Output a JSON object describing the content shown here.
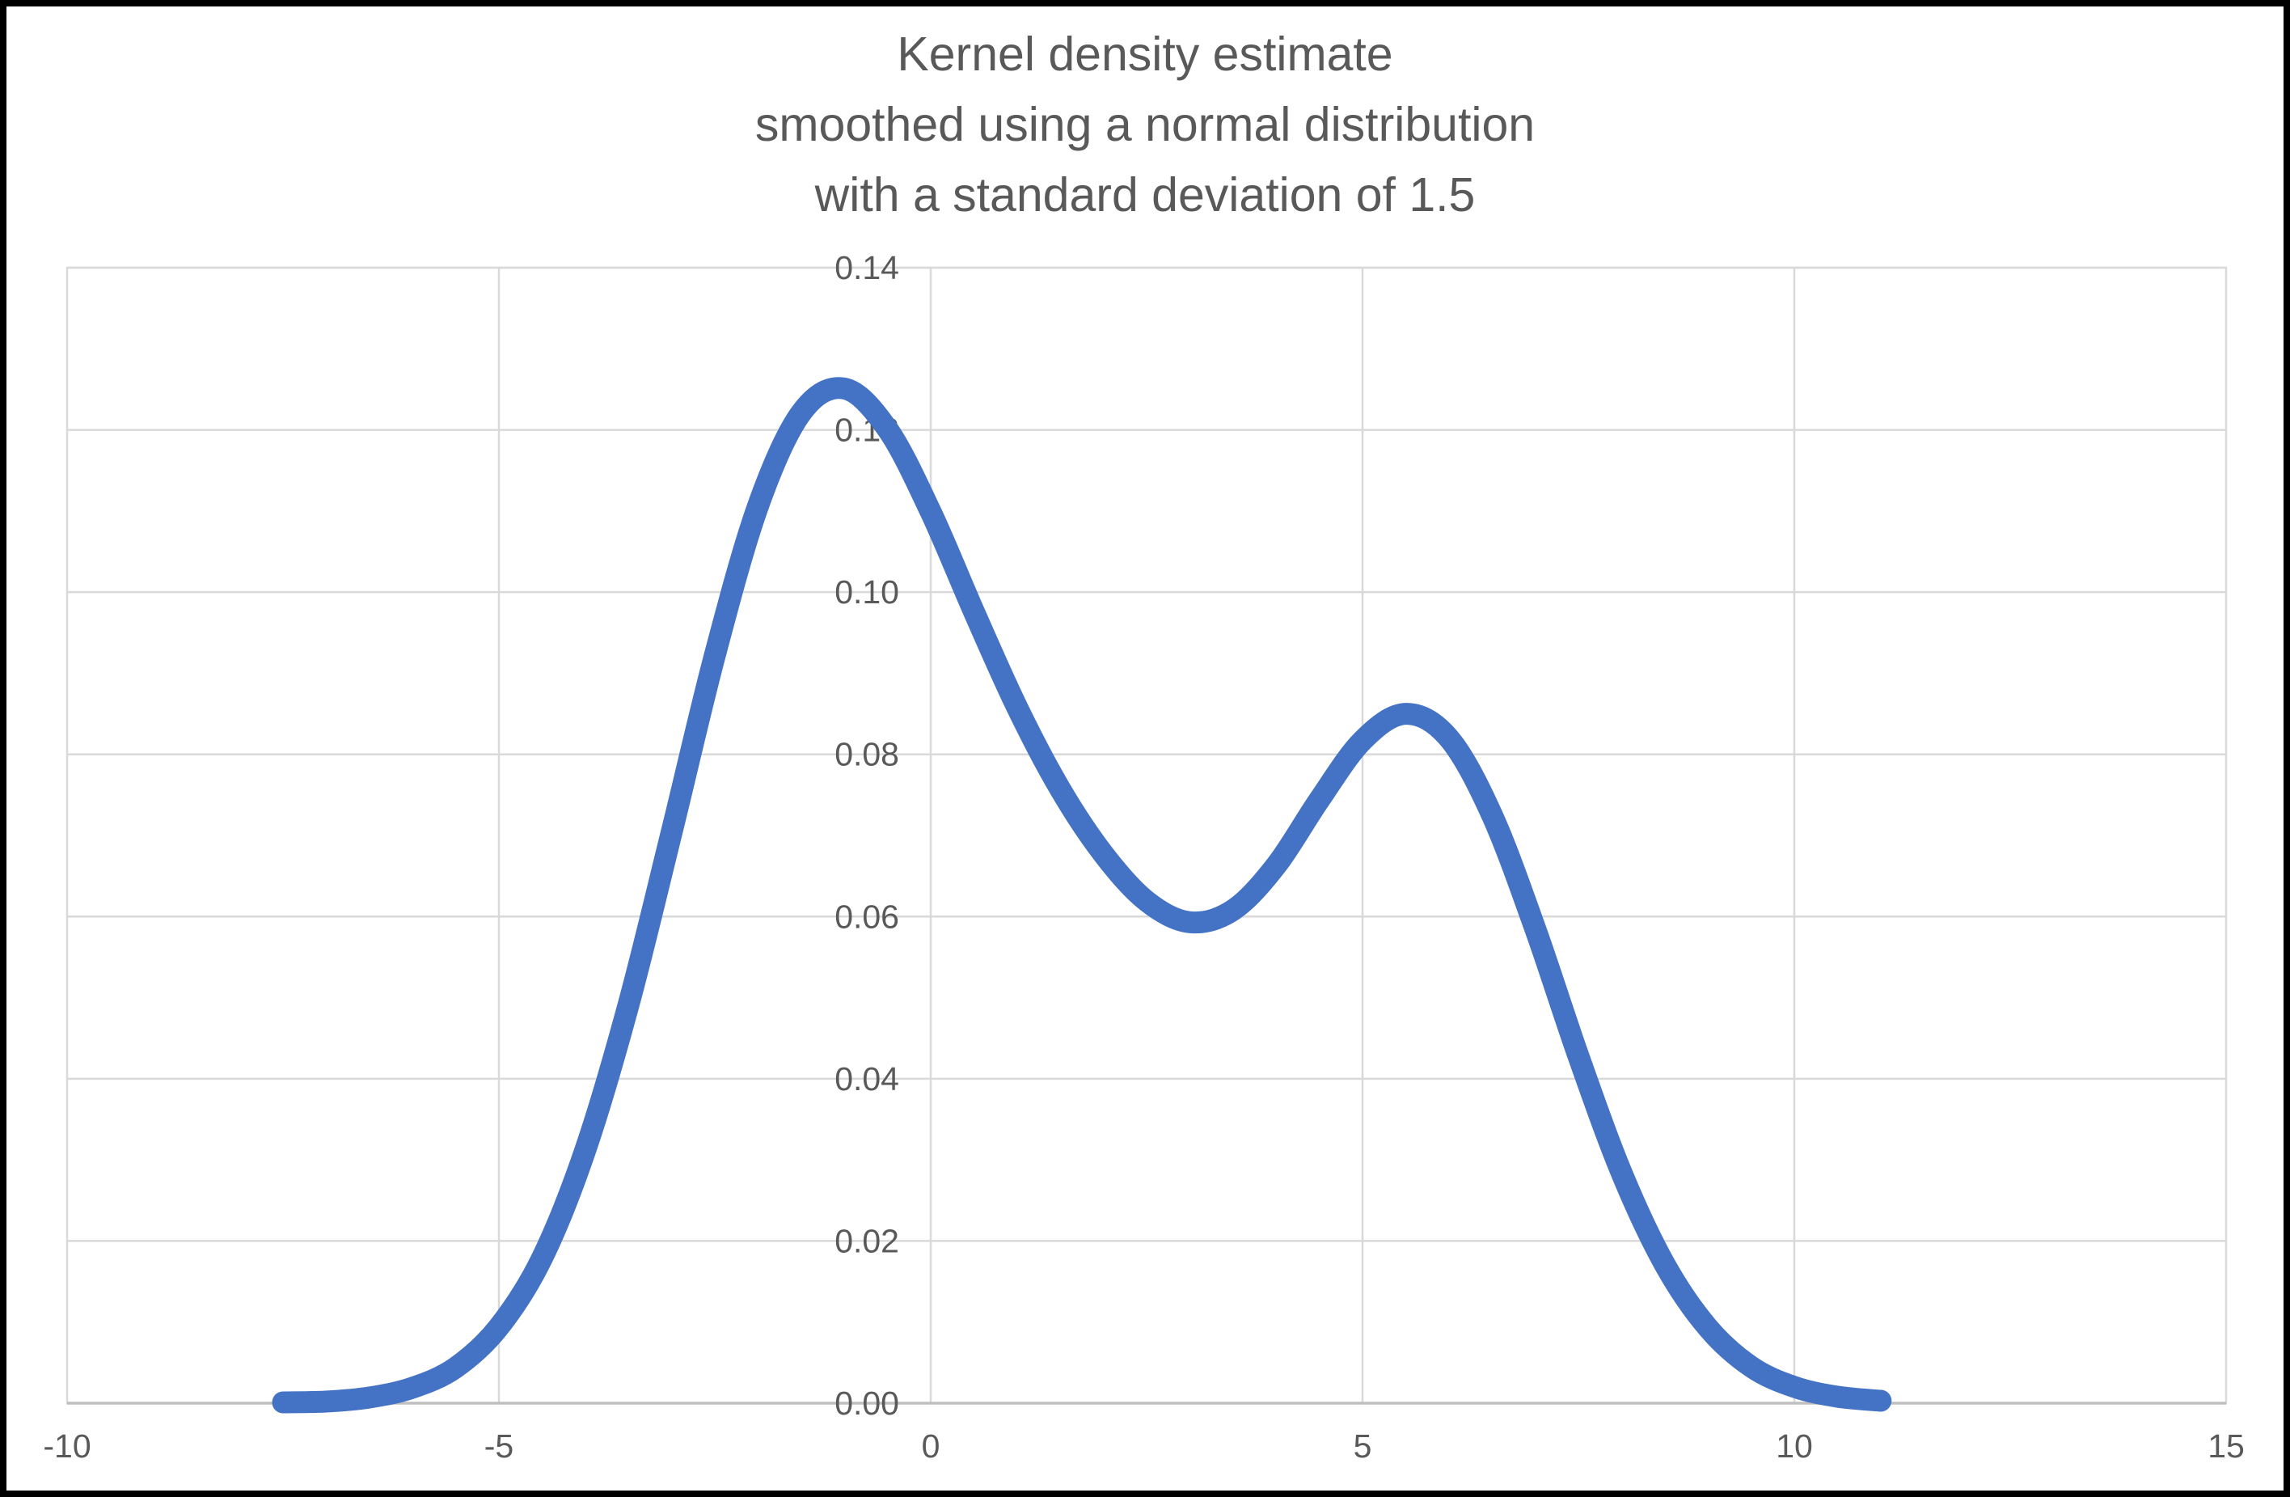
{
  "chart_data": {
    "type": "line",
    "title": "Kernel density estimate\nsmoothed using a normal distribution\nwith a standard deviation of 1.5",
    "title_lines": [
      "Kernel density estimate",
      "smoothed using a normal distribution",
      "with a standard deviation of 1.5"
    ],
    "xlabel": "",
    "ylabel": "",
    "xlim": [
      -10,
      15
    ],
    "ylim": [
      0,
      0.14
    ],
    "x_ticks": [
      -10,
      -5,
      0,
      5,
      10,
      15
    ],
    "y_ticks": [
      0.0,
      0.02,
      0.04,
      0.06,
      0.08,
      0.1,
      0.12,
      0.14
    ],
    "y_tick_decimals": 2,
    "grid": true,
    "legend_position": "none",
    "smoothing": {
      "kernel": "normal",
      "standard_deviation": 1.5
    },
    "series": [
      {
        "name": "Kernel density estimate",
        "color": "#4472C4",
        "stroke_width": 27,
        "points": [
          [
            -7.5,
            0.0001
          ],
          [
            -7.0,
            0.0002
          ],
          [
            -6.5,
            0.0007
          ],
          [
            -6.0,
            0.0019
          ],
          [
            -5.5,
            0.0044
          ],
          [
            -5.0,
            0.0094
          ],
          [
            -4.5,
            0.0179
          ],
          [
            -4.0,
            0.0312
          ],
          [
            -3.5,
            0.0491
          ],
          [
            -3.0,
            0.0704
          ],
          [
            -2.5,
            0.0922
          ],
          [
            -2.0,
            0.1106
          ],
          [
            -1.5,
            0.1221
          ],
          [
            -1.0,
            0.1251
          ],
          [
            -0.5,
            0.1201
          ],
          [
            0.0,
            0.1099
          ],
          [
            0.5,
            0.0976
          ],
          [
            1.0,
            0.0858
          ],
          [
            1.5,
            0.0757
          ],
          [
            2.0,
            0.0677
          ],
          [
            2.5,
            0.0619
          ],
          [
            3.0,
            0.0593
          ],
          [
            3.5,
            0.0608
          ],
          [
            4.0,
            0.0663
          ],
          [
            4.5,
            0.0744
          ],
          [
            5.0,
            0.0817
          ],
          [
            5.5,
            0.085
          ],
          [
            6.0,
            0.082
          ],
          [
            6.5,
            0.0725
          ],
          [
            7.0,
            0.0585
          ],
          [
            7.5,
            0.0428
          ],
          [
            8.0,
            0.0284
          ],
          [
            8.5,
            0.0171
          ],
          [
            9.0,
            0.0093
          ],
          [
            9.5,
            0.0045
          ],
          [
            10.0,
            0.002
          ],
          [
            10.5,
            0.0008
          ],
          [
            11.0,
            0.0003
          ]
        ]
      }
    ],
    "colors": {
      "line": "#4472C4",
      "gridline": "#D9D9D9",
      "plot_border": "#D9D9D9",
      "axis_line": "#BFBFBF",
      "text": "#595959",
      "background": "#FFFFFF",
      "outer_frame": "#000000"
    }
  }
}
